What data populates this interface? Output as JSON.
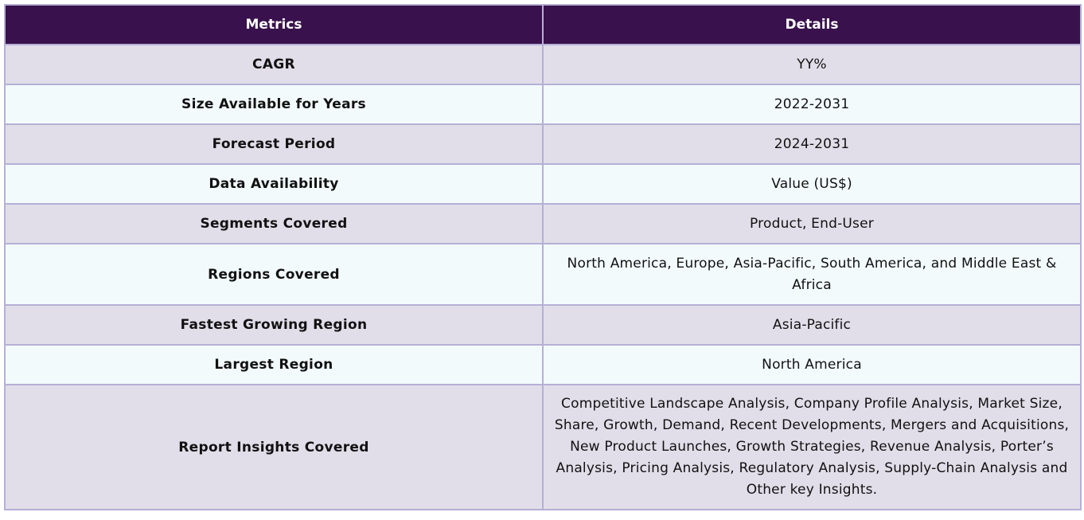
{
  "table": {
    "headers": [
      "Metrics",
      "Details"
    ],
    "rows": [
      {
        "metric": "CAGR",
        "detail": "YY%"
      },
      {
        "metric": "Size Available for Years",
        "detail": "2022-2031"
      },
      {
        "metric": "Forecast Period",
        "detail": "2024-2031"
      },
      {
        "metric": "Data Availability",
        "detail": "Value (US$)"
      },
      {
        "metric": "Segments Covered",
        "detail": "Product, End-User"
      },
      {
        "metric": "Regions Covered",
        "detail": "North America, Europe, Asia-Pacific, South America, and Middle East & Africa"
      },
      {
        "metric": "Fastest Growing Region",
        "detail": "Asia-Pacific"
      },
      {
        "metric": "Largest Region",
        "detail": "North America"
      },
      {
        "metric": "Report Insights Covered",
        "detail": "Competitive Landscape Analysis, Company Profile Analysis, Market Size, Share, Growth, Demand, Recent Developments, Mergers and Acquisitions, New Product Launches, Growth Strategies, Revenue Analysis, Porter’s Analysis, Pricing Analysis, Regulatory Analysis, Supply-Chain Analysis and Other key Insights."
      }
    ]
  },
  "colors": {
    "header_bg": "#39114c",
    "row_odd_bg": "#e1dee9",
    "row_even_bg": "#f3fafc",
    "border": "#b5b0d6"
  }
}
